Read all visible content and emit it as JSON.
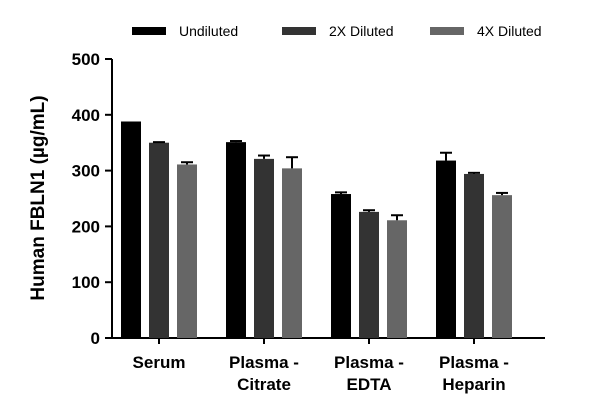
{
  "chart_data": {
    "type": "bar",
    "title": "",
    "xlabel": "",
    "ylabel": "Human FBLN1 (µg/mL)",
    "ylim": [
      0,
      500
    ],
    "yticks": [
      0,
      100,
      200,
      300,
      400,
      500
    ],
    "grid": false,
    "legend_position": "top",
    "categories": [
      [
        "Serum"
      ],
      [
        "Plasma -",
        "Citrate"
      ],
      [
        "Plasma -",
        "EDTA"
      ],
      [
        "Plasma -",
        "Heparin"
      ]
    ],
    "series": [
      {
        "name": "Undiluted",
        "color": "#000000",
        "values": [
          388,
          351,
          258,
          318
        ],
        "errors": [
          0,
          2,
          3,
          14
        ]
      },
      {
        "name": "2X Diluted",
        "color": "#333333",
        "values": [
          350,
          321,
          226,
          294
        ],
        "errors": [
          1,
          6,
          3,
          2
        ]
      },
      {
        "name": "4X Diluted",
        "color": "#666666",
        "values": [
          311,
          304,
          211,
          256
        ],
        "errors": [
          4,
          20,
          9,
          4
        ]
      }
    ]
  }
}
